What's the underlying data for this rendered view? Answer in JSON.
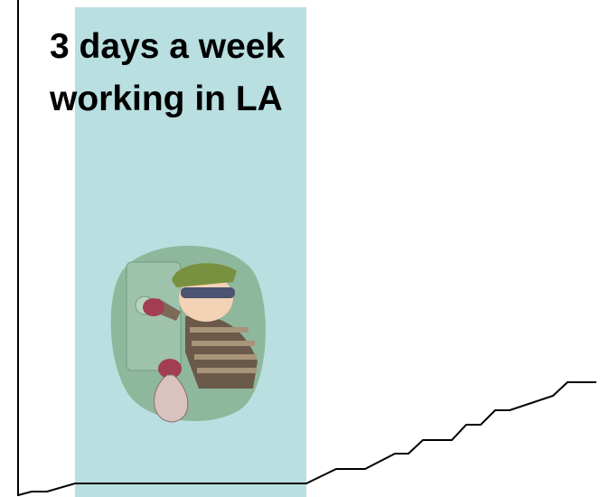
{
  "title": {
    "lines": [
      "3 days a week",
      "working in LA"
    ]
  }
}
